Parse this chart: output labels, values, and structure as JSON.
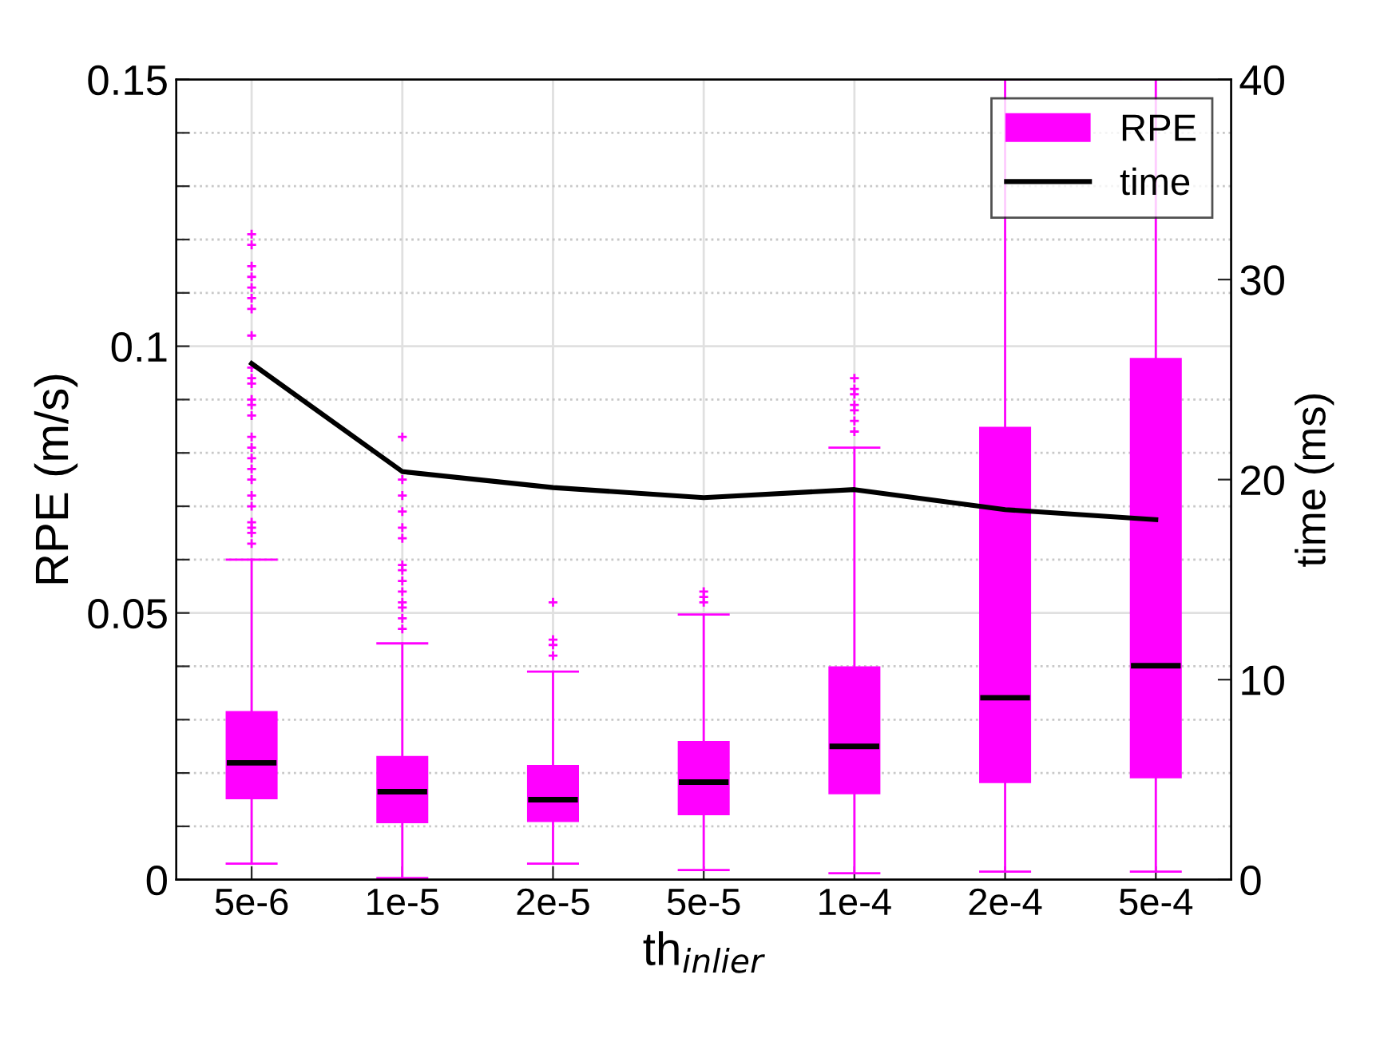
{
  "chart_data": {
    "type": "box",
    "categories": [
      "5e-6",
      "1e-5",
      "2e-5",
      "5e-5",
      "1e-4",
      "2e-4",
      "5e-4"
    ],
    "xlabel": "th$_{inlier}$",
    "ylabel": "RPE (m/s)",
    "y2label": "time (ms)",
    "series": [
      {
        "name": "RPE",
        "color": "#ff00ff",
        "boxes": [
          {
            "low": 0.003,
            "q1": 0.0153,
            "median": 0.0219,
            "q3": 0.0314,
            "high": 0.06,
            "outliers": [
              0.063,
              0.065,
              0.066,
              0.067,
              0.07,
              0.072,
              0.075,
              0.077,
              0.079,
              0.081,
              0.083,
              0.087,
              0.089,
              0.09,
              0.093,
              0.094,
              0.096,
              0.102,
              0.107,
              0.109,
              0.111,
              0.113,
              0.115,
              0.119,
              0.121
            ]
          },
          {
            "low": 0.0003,
            "q1": 0.0108,
            "median": 0.0165,
            "q3": 0.023,
            "high": 0.0443,
            "outliers": [
              0.047,
              0.049,
              0.051,
              0.052,
              0.054,
              0.056,
              0.058,
              0.059,
              0.064,
              0.066,
              0.069,
              0.072,
              0.075,
              0.083
            ]
          },
          {
            "low": 0.003,
            "q1": 0.011,
            "median": 0.015,
            "q3": 0.0213,
            "high": 0.039,
            "outliers": [
              0.042,
              0.044,
              0.045,
              0.052
            ]
          },
          {
            "low": 0.0018,
            "q1": 0.0123,
            "median": 0.0183,
            "q3": 0.0258,
            "high": 0.0497,
            "outliers": [
              0.052,
              0.053,
              0.054
            ]
          },
          {
            "low": 0.0012,
            "q1": 0.0162,
            "median": 0.025,
            "q3": 0.0398,
            "high": 0.081,
            "outliers": [
              0.084,
              0.086,
              0.088,
              0.089,
              0.091,
              0.092,
              0.094
            ]
          },
          {
            "low": 0.0015,
            "q1": 0.0183,
            "median": 0.0341,
            "q3": 0.0847,
            "high": 0.15
          },
          {
            "low": 0.0015,
            "q1": 0.0192,
            "median": 0.0401,
            "q3": 0.0976,
            "high": 0.15
          }
        ]
      },
      {
        "name": "time",
        "type": "line",
        "axis": "y2",
        "color": "#000000",
        "values": [
          25.8,
          20.4,
          19.6,
          19.1,
          19.5,
          18.5,
          18.0
        ]
      }
    ],
    "ylim": [
      0,
      0.15
    ],
    "yticks": [
      0,
      {
        "value": 0.01,
        "label": null
      },
      {
        "value": 0.02,
        "label": null
      },
      {
        "value": 0.03,
        "label": null
      },
      {
        "value": 0.04,
        "label": null
      },
      0.05,
      {
        "value": 0.06,
        "label": null
      },
      {
        "value": 0.07,
        "label": null
      },
      {
        "value": 0.08,
        "label": null
      },
      {
        "value": 0.09,
        "label": null
      },
      0.1,
      {
        "value": 0.11,
        "label": null
      },
      {
        "value": 0.12,
        "label": null
      },
      {
        "value": 0.13,
        "label": null
      },
      {
        "value": 0.14,
        "label": null
      },
      0.15
    ],
    "y2lim": [
      0,
      40
    ],
    "y2ticks": [
      0,
      10,
      20,
      30,
      40
    ],
    "grid": true,
    "legend": "top right",
    "marker": "none",
    "line_style": "solid"
  }
}
